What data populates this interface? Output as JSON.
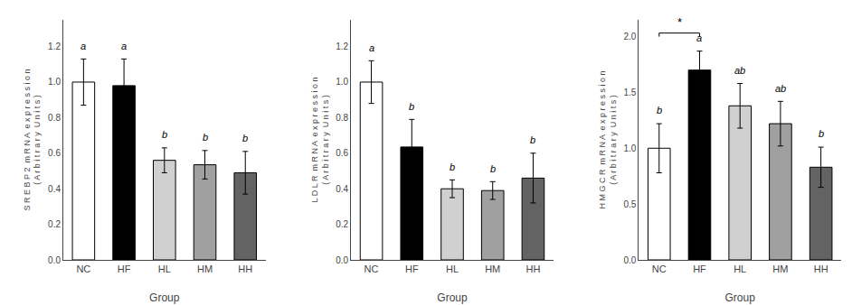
{
  "chart_data": [
    {
      "type": "bar",
      "xlabel": "Group",
      "ylabel": "S R E B P 2  m R N A  e x p r e s s i o n\n( A r b i t r a r y  U n i t s )",
      "categories": [
        "NC",
        "HF",
        "HL",
        "HM",
        "HH"
      ],
      "values": [
        1.0,
        0.98,
        0.56,
        0.535,
        0.49
      ],
      "errors": [
        0.13,
        0.15,
        0.07,
        0.08,
        0.12
      ],
      "letters": [
        "a",
        "a",
        "b",
        "b",
        "b"
      ],
      "colors": [
        "white",
        "black",
        "#d0d0d0",
        "#a0a0a0",
        "#636363"
      ],
      "ylim": [
        0,
        1.35
      ],
      "yticks": [
        {
          "value": 0.0,
          "label": "0.0"
        },
        0.2,
        0.4,
        0.6,
        0.8,
        {
          "value": 1.0,
          "label": "1.0"
        },
        1.2
      ],
      "grid": false
    },
    {
      "type": "bar",
      "xlabel": "Group",
      "ylabel": "L D L R  m R N A  e x p r e s s i o n\n( A r b i t r a r y  U n i t s )",
      "categories": [
        "NC",
        "HF",
        "HL",
        "HM",
        "HH"
      ],
      "values": [
        1.0,
        0.635,
        0.4,
        0.39,
        0.46
      ],
      "errors": [
        0.12,
        0.155,
        0.05,
        0.05,
        0.14
      ],
      "letters": [
        "a",
        "b",
        "b",
        "b",
        "b"
      ],
      "colors": [
        "white",
        "black",
        "#d0d0d0",
        "#a0a0a0",
        "#636363"
      ],
      "ylim": [
        0,
        1.35
      ],
      "yticks": [
        {
          "value": 0.0,
          "label": "0.0"
        },
        0.2,
        0.4,
        0.6,
        0.8,
        {
          "value": 1.0,
          "label": "1.0"
        },
        1.2
      ],
      "grid": false
    },
    {
      "type": "bar",
      "xlabel": "Group",
      "ylabel": "H M G C R  m R N A  e x p r e s s i o n\n( A r b i t r a r y  U n i t s )",
      "categories": [
        "NC",
        "HF",
        "HL",
        "HM",
        "HH"
      ],
      "values": [
        1.0,
        1.7,
        1.38,
        1.22,
        0.83
      ],
      "errors": [
        0.22,
        0.17,
        0.2,
        0.2,
        0.18
      ],
      "letters": [
        "b",
        "a",
        "ab",
        "ab",
        "b"
      ],
      "colors": [
        "white",
        "black",
        "#d0d0d0",
        "#a0a0a0",
        "#636363"
      ],
      "ylim": [
        0,
        2.15
      ],
      "yticks": [
        {
          "value": 0.0,
          "label": "0.0"
        },
        0.5,
        {
          "value": 1.0,
          "label": "1.0"
        },
        1.5,
        {
          "value": 2.0,
          "label": "2.0"
        }
      ],
      "grid": false,
      "significance": {
        "categories": [
          "NC",
          "HF"
        ],
        "label": "*"
      }
    }
  ]
}
